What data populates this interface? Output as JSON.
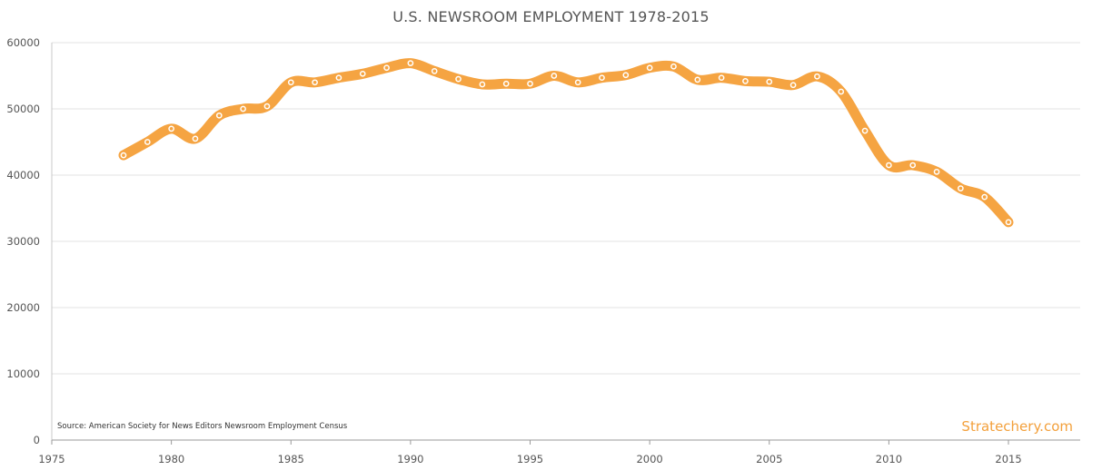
{
  "chart_data": {
    "type": "line",
    "title": "U.S. NEWSROOM EMPLOYMENT 1978-2015",
    "source": "Source: American Society for News Editors Newsroom Employment Census",
    "watermark": "Stratechery.com",
    "xlabel": "",
    "ylabel": "",
    "xlim": [
      1975,
      2018
    ],
    "ylim": [
      0,
      60000
    ],
    "x_ticks": [
      "1975",
      "1980",
      "1985",
      "1990",
      "1995",
      "2000",
      "2005",
      "2010",
      "2015"
    ],
    "y_ticks": [
      "0",
      "10000",
      "20000",
      "30000",
      "40000",
      "50000",
      "60000"
    ],
    "grid": "horizontal",
    "line_color": "#f5a442",
    "series": [
      {
        "x": [
          1978,
          1979,
          1980,
          1981,
          1982,
          1983,
          1984,
          1985,
          1986,
          1987,
          1988,
          1989,
          1990,
          1991,
          1992,
          1993,
          1994,
          1995,
          1996,
          1997,
          1998,
          1999,
          2000,
          2001,
          2002,
          2003,
          2004,
          2005,
          2006,
          2007,
          2008,
          2009,
          2010,
          2011,
          2012,
          2013,
          2014,
          2015
        ],
        "values": [
          43000,
          45000,
          47000,
          45500,
          49000,
          50000,
          50400,
          54000,
          54000,
          54700,
          55300,
          56200,
          56900,
          55700,
          54500,
          53700,
          53800,
          53800,
          55000,
          54000,
          54700,
          55100,
          56200,
          56400,
          54400,
          54700,
          54200,
          54100,
          53600,
          54900,
          52600,
          46700,
          41500,
          41500,
          40500,
          38000,
          36700,
          32900
        ]
      }
    ]
  }
}
